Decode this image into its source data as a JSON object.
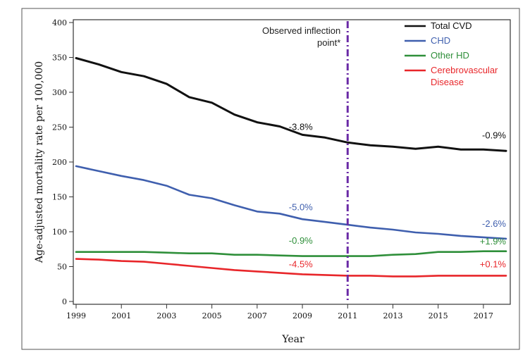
{
  "chart_data": {
    "type": "line",
    "title": "",
    "xlabel": "Year",
    "ylabel": "Age-adjusted mortality rate per 100,000",
    "xlim": [
      1999,
      2018
    ],
    "ylim": [
      0,
      400
    ],
    "xticks": [
      1999,
      2001,
      2003,
      2005,
      2007,
      2009,
      2011,
      2013,
      2015,
      2017
    ],
    "yticks": [
      0,
      50,
      100,
      150,
      200,
      250,
      300,
      350,
      400
    ],
    "grid": false,
    "legend_position": "top-right",
    "inflection": {
      "x": 2011,
      "label_line1": "Observed inflection",
      "label_line2": "point*",
      "color": "#6a2aa6"
    },
    "x": [
      1999,
      2000,
      2001,
      2002,
      2003,
      2004,
      2005,
      2006,
      2007,
      2008,
      2009,
      2010,
      2011,
      2012,
      2013,
      2014,
      2015,
      2016,
      2017,
      2018
    ],
    "series": [
      {
        "name": "Total CVD",
        "color": "#111111",
        "values": [
          349,
          340,
          329,
          323,
          312,
          293,
          285,
          268,
          257,
          251,
          239,
          235,
          228,
          224,
          222,
          219,
          222,
          218,
          218,
          216
        ],
        "annotations": [
          {
            "text": "-3.8%",
            "x": 2008.4,
            "y": 246,
            "anchor": "start"
          },
          {
            "text": "-0.9%",
            "x": 2018,
            "y": 234,
            "anchor": "end"
          }
        ]
      },
      {
        "name": "CHD",
        "color": "#3f5fae",
        "values": [
          194,
          187,
          180,
          174,
          166,
          153,
          148,
          138,
          129,
          126,
          118,
          114,
          110,
          106,
          103,
          99,
          97,
          94,
          92,
          90
        ],
        "annotations": [
          {
            "text": "-5.0%",
            "x": 2008.4,
            "y": 131,
            "anchor": "start"
          },
          {
            "text": "-2.6%",
            "x": 2018,
            "y": 107,
            "anchor": "end"
          }
        ]
      },
      {
        "name": "Other HD",
        "color": "#2f8f3a",
        "values": [
          71,
          71,
          71,
          71,
          70,
          69,
          69,
          67,
          67,
          66,
          65,
          65,
          65,
          65,
          67,
          68,
          71,
          71,
          72,
          72
        ],
        "annotations": [
          {
            "text": "-0.9%",
            "x": 2008.4,
            "y": 83,
            "anchor": "start"
          },
          {
            "text": "+1.9%",
            "x": 2018,
            "y": 82,
            "anchor": "end"
          }
        ]
      },
      {
        "name": "Cerebrovascular Disease",
        "legend_lines": [
          "Cerebrovascular",
          "Disease"
        ],
        "color": "#e8262a",
        "values": [
          61,
          60,
          58,
          57,
          54,
          51,
          48,
          45,
          43,
          41,
          39,
          38,
          37,
          37,
          36,
          36,
          37,
          37,
          37,
          37
        ],
        "annotations": [
          {
            "text": "-4.5%",
            "x": 2008.4,
            "y": 49,
            "anchor": "start"
          },
          {
            "text": "+0.1%",
            "x": 2018,
            "y": 49,
            "anchor": "end"
          }
        ]
      }
    ]
  }
}
